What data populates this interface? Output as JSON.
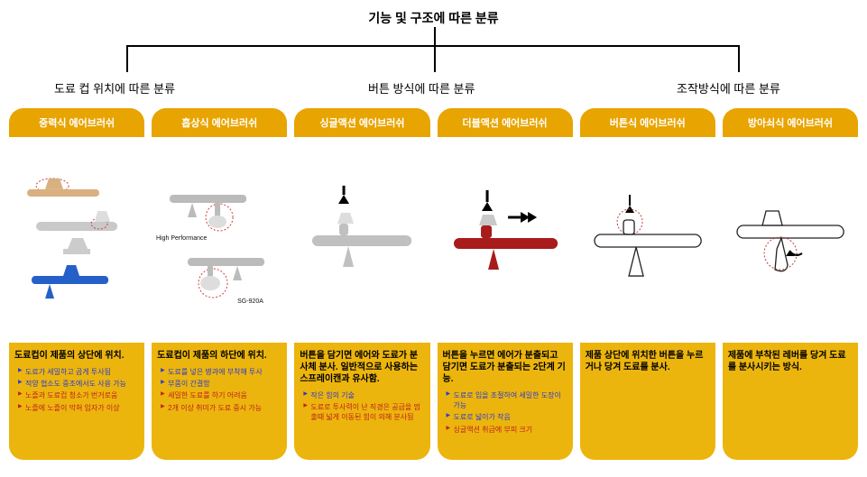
{
  "rootTitle": "기능 및 구조에 따른 분류",
  "subs": {
    "a": "도료 컵 위치에 따른 분류",
    "b": "버튼 방식에 따른 분류",
    "c": "조작방식에 따른 분류"
  },
  "colors": {
    "headerBg": "#e8a400",
    "bodyBg": "#ecb50d",
    "cardBg": "#f2f2f2",
    "blueText": "#2a3bd1",
    "redText": "#c02020"
  },
  "cards": [
    {
      "title": "중력식 에어브러쉬",
      "bold": "도료컵이 제품의 상단에 위치.",
      "bullets": [
        {
          "cls": "blue",
          "text": "도료가 세밀하고 곱게 투사됨"
        },
        {
          "cls": "blue",
          "text": "적양 협소도 중조에서도 사용 가능"
        },
        {
          "cls": "red",
          "text": "노즐과 도료컵 청소가 번거로움"
        },
        {
          "cls": "red",
          "text": "노즐에 노즐이 막혀 입자가 이상"
        }
      ]
    },
    {
      "title": "흡상식 에어브러쉬",
      "bold": "도료컵이 제품의 하단에 위치.",
      "bullets": [
        {
          "cls": "blue",
          "text": "도료를 넣은 병과에 부착해 투사"
        },
        {
          "cls": "blue",
          "text": "부품이 간결함"
        },
        {
          "cls": "red",
          "text": "세밀한 도료를 하기 어려움"
        },
        {
          "cls": "red",
          "text": "2개 이상 취미가 도료 중시 가능"
        }
      ]
    },
    {
      "title": "싱글액션 에어브러쉬",
      "bold": "버튼을 담기면 에어와 도료가 분사체 분사. 일반적으로 사용하는 스프레이캔과 유사함.",
      "bullets": [
        {
          "cls": "blue",
          "text": "작은 힘의 기술"
        },
        {
          "cls": "red",
          "text": "도료로 투사력이 난 직경은 공급을 멈출때 넓게 이동된 힘이 의해 분사됨"
        }
      ]
    },
    {
      "title": "더블액션 에어브러쉬",
      "bold": "버튼을 누르면 에어가 분출되고 담기면 도료가 분출되는 2단계 기능.",
      "bullets": [
        {
          "cls": "blue",
          "text": "도료로 입을 조절하여 세밀한 도장이 가능"
        },
        {
          "cls": "blue",
          "text": "도료로 넓이가 작음"
        },
        {
          "cls": "red",
          "text": "싱글액션 취급에 부피 크기"
        }
      ]
    },
    {
      "title": "버튼식 에어브러쉬",
      "bold": "제품 상단에 위치한 버튼을 누르거나 당겨 도료를 분사.",
      "bullets": []
    },
    {
      "title": "방아쇠식 에어브러쉬",
      "bold": "제품에 부착된 레버를 당겨 도료를 분사시키는 방식.",
      "bullets": []
    }
  ]
}
